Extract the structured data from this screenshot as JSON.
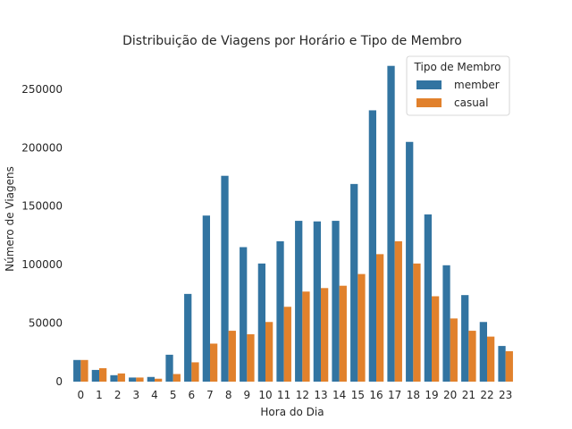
{
  "chart_data": {
    "type": "bar",
    "title": "Distribuição de Viagens por Horário e Tipo de Membro",
    "xlabel": "Hora do Dia",
    "ylabel": "Número de Viagens",
    "categories": [
      "0",
      "1",
      "2",
      "3",
      "4",
      "5",
      "6",
      "7",
      "8",
      "9",
      "10",
      "11",
      "12",
      "13",
      "14",
      "15",
      "16",
      "17",
      "18",
      "19",
      "20",
      "21",
      "22",
      "23"
    ],
    "ylim": [
      0,
      282000
    ],
    "yticks": [
      0,
      50000,
      100000,
      150000,
      200000,
      250000
    ],
    "yticks_labels": [
      "0",
      "50000",
      "100000",
      "150000",
      "200000",
      "250000"
    ],
    "grid": false,
    "legend": {
      "title": "Tipo de Membro",
      "placement": "top-right"
    },
    "series": [
      {
        "name": "member",
        "color": "#3274a1",
        "values": [
          18500,
          10000,
          5500,
          3500,
          4000,
          23000,
          75000,
          142000,
          176000,
          115000,
          101000,
          120000,
          137500,
          137000,
          137500,
          169000,
          232000,
          270000,
          205000,
          143000,
          99500,
          74000,
          51000,
          30500
        ]
      },
      {
        "name": "casual",
        "color": "#e1812c",
        "values": [
          18500,
          11500,
          7000,
          3500,
          2500,
          6500,
          16500,
          32500,
          43500,
          40500,
          51000,
          64000,
          77000,
          80000,
          82000,
          92000,
          109000,
          120000,
          101000,
          73000,
          54000,
          43500,
          38500,
          26000
        ]
      }
    ]
  }
}
